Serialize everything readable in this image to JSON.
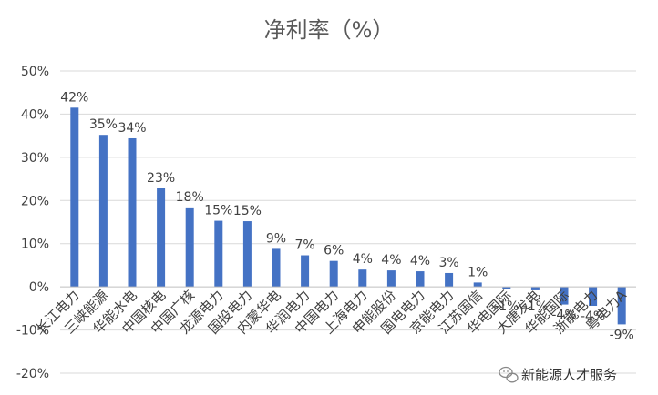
{
  "chart_data": {
    "type": "bar",
    "title": "净利率（%）",
    "xlabel": "",
    "ylabel": "",
    "ylim": [
      -20,
      50
    ],
    "yticks": [
      -20,
      -10,
      0,
      10,
      20,
      30,
      40,
      50
    ],
    "ytick_labels": [
      "-20%",
      "-10%",
      "0%",
      "10%",
      "20%",
      "30%",
      "40%",
      "50%"
    ],
    "grid": true,
    "legend": "none",
    "bar_color": "#4472c4",
    "categories": [
      "长江电力",
      "三峡能源",
      "华能水电",
      "中国核电",
      "中国广核",
      "龙源电力",
      "国投电力",
      "内蒙华电",
      "华润电力",
      "中国电力",
      "上海电力",
      "申能股份",
      "国电电力",
      "京能电力",
      "江苏国信",
      "华电国际",
      "大唐发电",
      "华能国际",
      "浙能电力",
      "粤电力A"
    ],
    "values": [
      41.5,
      35.2,
      34.4,
      22.8,
      18.4,
      15.3,
      15.2,
      8.8,
      7.3,
      6.0,
      4.0,
      3.8,
      3.6,
      3.2,
      1.0,
      -0.6,
      -0.8,
      -4.1,
      -4.4,
      -8.7
    ],
    "data_labels": [
      "42%",
      "35%",
      "34%",
      "23%",
      "18%",
      "15%",
      "15%",
      "9%",
      "7%",
      "6%",
      "4%",
      "4%",
      "4%",
      "3%",
      "1%",
      "-1%",
      "-1%",
      "-4%",
      "-4%",
      "-9%"
    ]
  },
  "watermark": {
    "text": "新能源人才服务",
    "icon": "wechat-icon"
  }
}
